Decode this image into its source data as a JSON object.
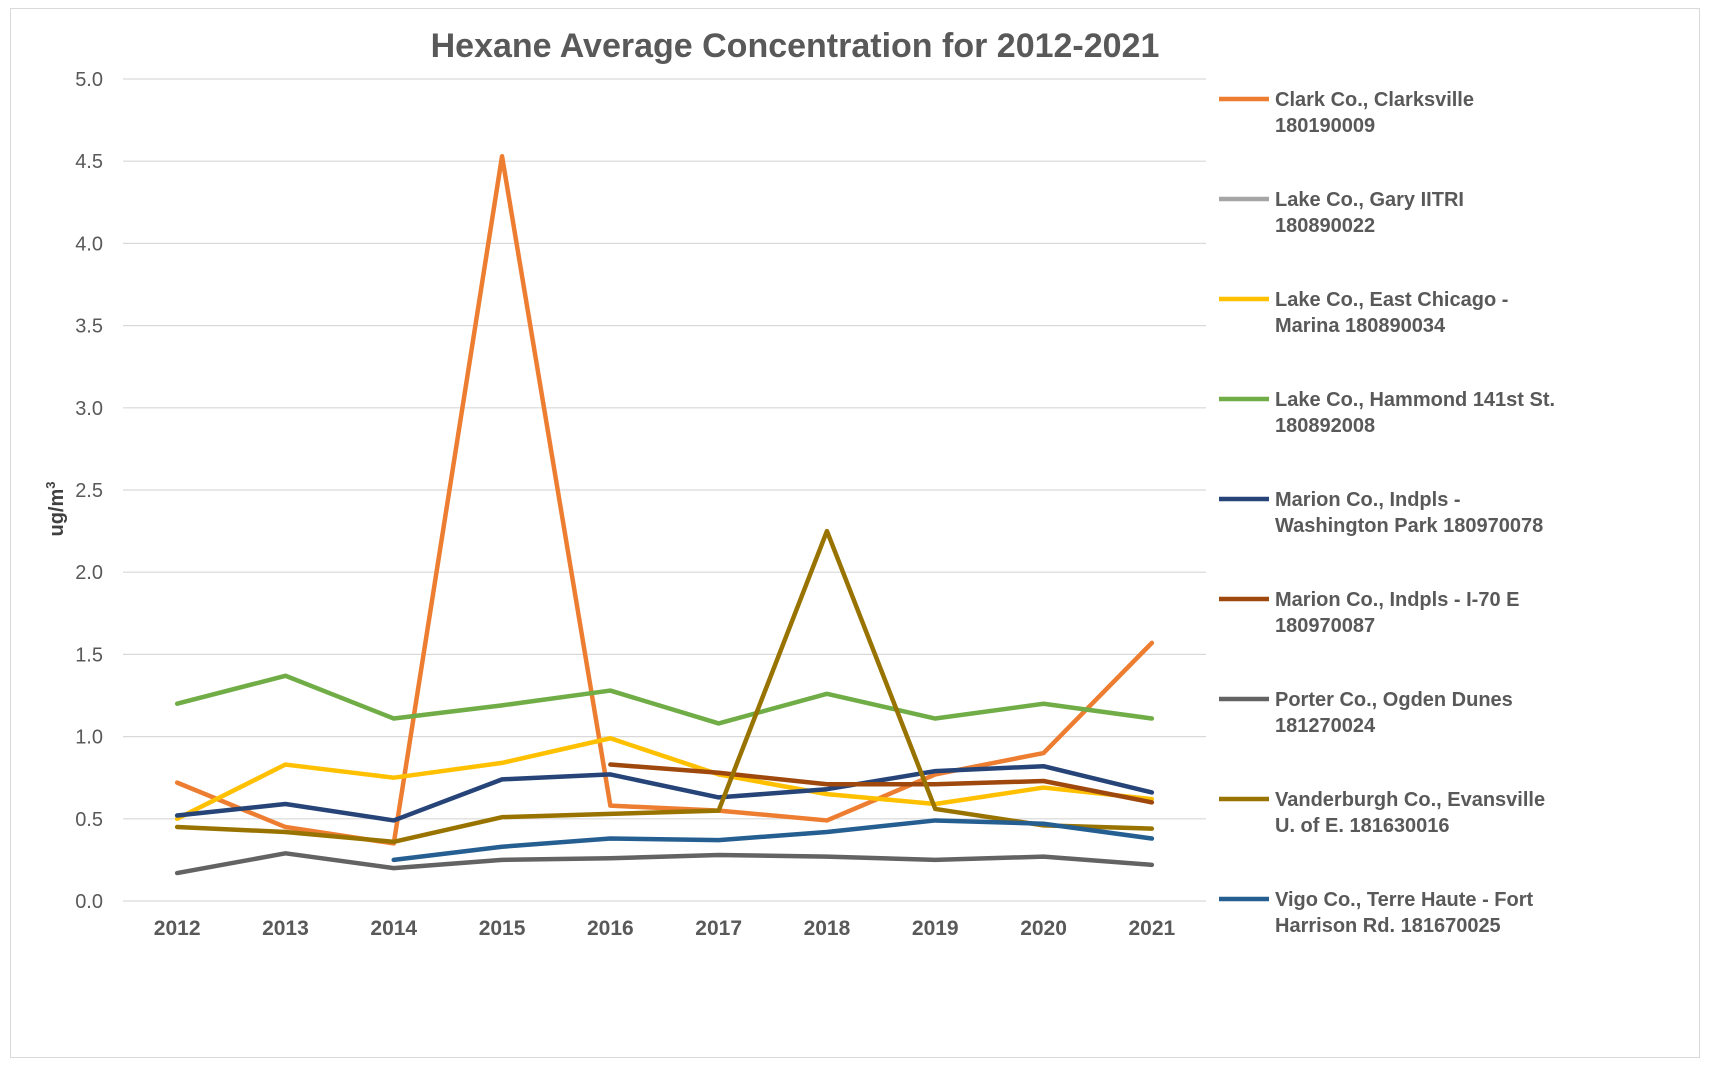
{
  "chart_data": {
    "type": "line",
    "title": "Hexane Average Concentration for 2012-2021",
    "xlabel": "",
    "ylabel": "ug/m",
    "ylabel_superscript": "3",
    "ylim": [
      0,
      5
    ],
    "yticks": [
      "0.0",
      "0.5",
      "1.0",
      "1.5",
      "2.0",
      "2.5",
      "3.0",
      "3.5",
      "4.0",
      "4.5",
      "5.0"
    ],
    "categories": [
      "2012",
      "2013",
      "2014",
      "2015",
      "2016",
      "2017",
      "2018",
      "2019",
      "2020",
      "2021"
    ],
    "grid": true,
    "legend_position": "right",
    "series": [
      {
        "name_lines": [
          "Clark Co., Clarksville",
          "180190009"
        ],
        "color": "#ED7D31",
        "values": [
          0.72,
          0.45,
          0.35,
          4.53,
          0.58,
          0.55,
          0.49,
          0.77,
          0.9,
          1.57
        ]
      },
      {
        "name_lines": [
          "Lake Co., Gary IITRI",
          "180890022"
        ],
        "color": "#A5A5A5",
        "values": [
          null,
          null,
          null,
          null,
          null,
          null,
          null,
          null,
          null,
          null
        ]
      },
      {
        "name_lines": [
          "Lake Co., East Chicago -",
          "Marina 180890034"
        ],
        "color": "#FFC000",
        "values": [
          0.5,
          0.83,
          0.75,
          0.84,
          0.99,
          0.77,
          0.65,
          0.59,
          0.69,
          0.62
        ]
      },
      {
        "name_lines": [
          "Lake Co., Hammond 141st St.",
          "180892008"
        ],
        "color": "#70AD47",
        "values": [
          1.2,
          1.37,
          1.11,
          1.19,
          1.28,
          1.08,
          1.26,
          1.11,
          1.2,
          1.11
        ]
      },
      {
        "name_lines": [
          "Marion Co., Indpls -",
          "Washington Park 180970078"
        ],
        "color": "#264478",
        "values": [
          0.52,
          0.59,
          0.49,
          0.74,
          0.77,
          0.63,
          0.68,
          0.79,
          0.82,
          0.66
        ]
      },
      {
        "name_lines": [
          "Marion Co., Indpls - I-70 E",
          "180970087"
        ],
        "color": "#9E480E",
        "values": [
          null,
          null,
          null,
          null,
          0.83,
          0.78,
          0.71,
          0.71,
          0.73,
          0.6
        ]
      },
      {
        "name_lines": [
          "Porter Co., Ogden Dunes",
          "181270024"
        ],
        "color": "#636363",
        "values": [
          0.17,
          0.29,
          0.2,
          0.25,
          0.26,
          0.28,
          0.27,
          0.25,
          0.27,
          0.22
        ]
      },
      {
        "name_lines": [
          "Vanderburgh Co., Evansville",
          "U. of E. 181630016"
        ],
        "color": "#997300",
        "values": [
          0.45,
          0.42,
          0.36,
          0.51,
          0.53,
          0.55,
          2.25,
          0.56,
          0.46,
          0.44
        ]
      },
      {
        "name_lines": [
          "Vigo Co., Terre Haute - Fort",
          "Harrison Rd. 181670025"
        ],
        "color": "#255E91",
        "values": [
          null,
          null,
          0.25,
          0.33,
          0.38,
          0.37,
          0.42,
          0.49,
          0.47,
          0.38
        ]
      }
    ]
  }
}
